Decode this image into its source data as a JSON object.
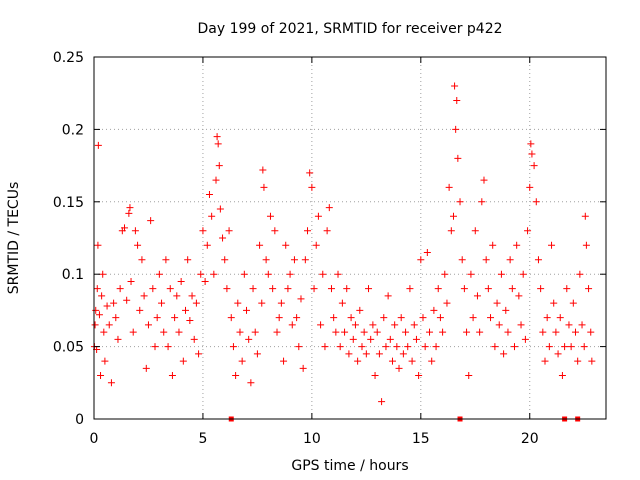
{
  "chart_data": {
    "type": "scatter",
    "title": "Day 199 of 2021, SRMTID for receiver p422",
    "xlabel": "GPS time / hours",
    "ylabel": "SRMTID / TECUs",
    "xlim": [
      0,
      23.5
    ],
    "ylim": [
      0,
      0.25
    ],
    "xticks": [
      0,
      5,
      10,
      15,
      20
    ],
    "xtick_labels": [
      "0",
      "5",
      "10",
      "15",
      "20"
    ],
    "yticks": [
      0,
      0.05,
      0.1,
      0.15,
      0.2,
      0.25
    ],
    "ytick_labels": [
      "0",
      "0.05",
      "0.1",
      "0.15",
      "0.2",
      "0.25"
    ],
    "grid": true,
    "marker": "+",
    "color": "#ff0000",
    "series": [
      {
        "name": "SRMTID",
        "points": [
          [
            0.02,
            0.05
          ],
          [
            0.05,
            0.065
          ],
          [
            0.08,
            0.075
          ],
          [
            0.12,
            0.048
          ],
          [
            0.15,
            0.09
          ],
          [
            0.18,
            0.12
          ],
          [
            0.2,
            0.189
          ],
          [
            0.25,
            0.072
          ],
          [
            0.3,
            0.03
          ],
          [
            0.35,
            0.085
          ],
          [
            0.4,
            0.1
          ],
          [
            0.45,
            0.06
          ],
          [
            0.5,
            0.04
          ],
          [
            0.6,
            0.078
          ],
          [
            0.7,
            0.065
          ],
          [
            0.8,
            0.025
          ],
          [
            0.9,
            0.08
          ],
          [
            1.0,
            0.07
          ],
          [
            1.1,
            0.055
          ],
          [
            1.2,
            0.09
          ],
          [
            1.3,
            0.13
          ],
          [
            1.4,
            0.132
          ],
          [
            1.5,
            0.082
          ],
          [
            1.6,
            0.142
          ],
          [
            1.65,
            0.146
          ],
          [
            1.7,
            0.095
          ],
          [
            1.8,
            0.06
          ],
          [
            1.9,
            0.13
          ],
          [
            2.0,
            0.12
          ],
          [
            2.1,
            0.075
          ],
          [
            2.2,
            0.11
          ],
          [
            2.3,
            0.085
          ],
          [
            2.4,
            0.035
          ],
          [
            2.5,
            0.065
          ],
          [
            2.6,
            0.137
          ],
          [
            2.7,
            0.09
          ],
          [
            2.8,
            0.05
          ],
          [
            2.9,
            0.07
          ],
          [
            3.0,
            0.1
          ],
          [
            3.1,
            0.08
          ],
          [
            3.2,
            0.06
          ],
          [
            3.3,
            0.11
          ],
          [
            3.4,
            0.05
          ],
          [
            3.5,
            0.09
          ],
          [
            3.6,
            0.03
          ],
          [
            3.7,
            0.07
          ],
          [
            3.8,
            0.085
          ],
          [
            3.9,
            0.06
          ],
          [
            4.0,
            0.095
          ],
          [
            4.1,
            0.04
          ],
          [
            4.2,
            0.075
          ],
          [
            4.3,
            0.11
          ],
          [
            4.4,
            0.068
          ],
          [
            4.5,
            0.085
          ],
          [
            4.6,
            0.055
          ],
          [
            4.7,
            0.08
          ],
          [
            4.8,
            0.045
          ],
          [
            4.9,
            0.1
          ],
          [
            5.0,
            0.13
          ],
          [
            5.1,
            0.095
          ],
          [
            5.2,
            0.12
          ],
          [
            5.3,
            0.155
          ],
          [
            5.4,
            0.14
          ],
          [
            5.5,
            0.1
          ],
          [
            5.6,
            0.165
          ],
          [
            5.65,
            0.195
          ],
          [
            5.7,
            0.19
          ],
          [
            5.75,
            0.175
          ],
          [
            5.8,
            0.145
          ],
          [
            5.9,
            0.125
          ],
          [
            6.0,
            0.11
          ],
          [
            6.1,
            0.09
          ],
          [
            6.2,
            0.13
          ],
          [
            6.3,
            0.07
          ],
          [
            6.4,
            0.05
          ],
          [
            6.5,
            0.03
          ],
          [
            6.6,
            0.08
          ],
          [
            6.7,
            0.06
          ],
          [
            6.8,
            0.04
          ],
          [
            6.9,
            0.1
          ],
          [
            7.0,
            0.075
          ],
          [
            7.1,
            0.055
          ],
          [
            7.2,
            0.025
          ],
          [
            7.3,
            0.09
          ],
          [
            7.4,
            0.06
          ],
          [
            7.5,
            0.045
          ],
          [
            7.6,
            0.12
          ],
          [
            7.7,
            0.08
          ],
          [
            7.75,
            0.172
          ],
          [
            7.8,
            0.16
          ],
          [
            7.9,
            0.11
          ],
          [
            8.0,
            0.1
          ],
          [
            8.1,
            0.14
          ],
          [
            8.2,
            0.09
          ],
          [
            8.3,
            0.13
          ],
          [
            8.4,
            0.06
          ],
          [
            8.5,
            0.07
          ],
          [
            8.6,
            0.08
          ],
          [
            8.7,
            0.04
          ],
          [
            8.8,
            0.12
          ],
          [
            8.9,
            0.09
          ],
          [
            9.0,
            0.1
          ],
          [
            9.1,
            0.065
          ],
          [
            9.2,
            0.11
          ],
          [
            9.3,
            0.07
          ],
          [
            9.4,
            0.05
          ],
          [
            9.5,
            0.083
          ],
          [
            9.6,
            0.035
          ],
          [
            9.7,
            0.11
          ],
          [
            9.8,
            0.13
          ],
          [
            9.9,
            0.17
          ],
          [
            10.0,
            0.16
          ],
          [
            10.1,
            0.09
          ],
          [
            10.2,
            0.12
          ],
          [
            10.3,
            0.14
          ],
          [
            10.4,
            0.065
          ],
          [
            10.5,
            0.1
          ],
          [
            10.6,
            0.05
          ],
          [
            10.7,
            0.13
          ],
          [
            10.8,
            0.146
          ],
          [
            10.9,
            0.09
          ],
          [
            11.0,
            0.07
          ],
          [
            11.1,
            0.06
          ],
          [
            11.2,
            0.1
          ],
          [
            11.3,
            0.05
          ],
          [
            11.4,
            0.08
          ],
          [
            11.5,
            0.06
          ],
          [
            11.6,
            0.09
          ],
          [
            11.7,
            0.045
          ],
          [
            11.8,
            0.07
          ],
          [
            11.9,
            0.055
          ],
          [
            12.0,
            0.065
          ],
          [
            12.1,
            0.04
          ],
          [
            12.2,
            0.075
          ],
          [
            12.3,
            0.05
          ],
          [
            12.4,
            0.06
          ],
          [
            12.5,
            0.045
          ],
          [
            12.6,
            0.09
          ],
          [
            12.7,
            0.055
          ],
          [
            12.8,
            0.065
          ],
          [
            12.9,
            0.03
          ],
          [
            13.0,
            0.06
          ],
          [
            13.1,
            0.045
          ],
          [
            13.2,
            0.012
          ],
          [
            13.3,
            0.07
          ],
          [
            13.4,
            0.05
          ],
          [
            13.5,
            0.085
          ],
          [
            13.6,
            0.055
          ],
          [
            13.7,
            0.04
          ],
          [
            13.8,
            0.065
          ],
          [
            13.9,
            0.05
          ],
          [
            14.0,
            0.035
          ],
          [
            14.1,
            0.07
          ],
          [
            14.2,
            0.045
          ],
          [
            14.3,
            0.06
          ],
          [
            14.4,
            0.05
          ],
          [
            14.5,
            0.09
          ],
          [
            14.6,
            0.04
          ],
          [
            14.7,
            0.065
          ],
          [
            14.8,
            0.055
          ],
          [
            14.9,
            0.03
          ],
          [
            15.0,
            0.11
          ],
          [
            15.1,
            0.07
          ],
          [
            15.2,
            0.05
          ],
          [
            15.3,
            0.115
          ],
          [
            15.4,
            0.06
          ],
          [
            15.5,
            0.04
          ],
          [
            15.6,
            0.075
          ],
          [
            15.7,
            0.05
          ],
          [
            15.8,
            0.09
          ],
          [
            15.9,
            0.07
          ],
          [
            16.0,
            0.06
          ],
          [
            16.1,
            0.1
          ],
          [
            16.2,
            0.08
          ],
          [
            16.3,
            0.16
          ],
          [
            16.4,
            0.13
          ],
          [
            16.5,
            0.14
          ],
          [
            16.55,
            0.23
          ],
          [
            16.6,
            0.2
          ],
          [
            16.65,
            0.22
          ],
          [
            16.7,
            0.18
          ],
          [
            16.8,
            0.15
          ],
          [
            16.9,
            0.11
          ],
          [
            17.0,
            0.09
          ],
          [
            17.1,
            0.06
          ],
          [
            17.2,
            0.03
          ],
          [
            17.3,
            0.1
          ],
          [
            17.4,
            0.07
          ],
          [
            17.5,
            0.13
          ],
          [
            17.6,
            0.085
          ],
          [
            17.7,
            0.06
          ],
          [
            17.8,
            0.15
          ],
          [
            17.9,
            0.165
          ],
          [
            18.0,
            0.11
          ],
          [
            18.1,
            0.09
          ],
          [
            18.2,
            0.07
          ],
          [
            18.3,
            0.12
          ],
          [
            18.4,
            0.05
          ],
          [
            18.5,
            0.08
          ],
          [
            18.6,
            0.065
          ],
          [
            18.7,
            0.1
          ],
          [
            18.8,
            0.045
          ],
          [
            18.9,
            0.075
          ],
          [
            19.0,
            0.06
          ],
          [
            19.1,
            0.11
          ],
          [
            19.2,
            0.09
          ],
          [
            19.3,
            0.05
          ],
          [
            19.4,
            0.12
          ],
          [
            19.5,
            0.085
          ],
          [
            19.6,
            0.065
          ],
          [
            19.7,
            0.1
          ],
          [
            19.8,
            0.055
          ],
          [
            19.9,
            0.13
          ],
          [
            20.0,
            0.16
          ],
          [
            20.05,
            0.19
          ],
          [
            20.1,
            0.183
          ],
          [
            20.2,
            0.175
          ],
          [
            20.3,
            0.15
          ],
          [
            20.4,
            0.11
          ],
          [
            20.5,
            0.09
          ],
          [
            20.6,
            0.06
          ],
          [
            20.7,
            0.04
          ],
          [
            20.8,
            0.07
          ],
          [
            20.9,
            0.05
          ],
          [
            21.0,
            0.12
          ],
          [
            21.1,
            0.08
          ],
          [
            21.2,
            0.06
          ],
          [
            21.3,
            0.045
          ],
          [
            21.4,
            0.07
          ],
          [
            21.5,
            0.03
          ],
          [
            21.6,
            0.05
          ],
          [
            21.7,
            0.09
          ],
          [
            21.8,
            0.065
          ],
          [
            21.9,
            0.05
          ],
          [
            22.0,
            0.08
          ],
          [
            22.1,
            0.06
          ],
          [
            22.2,
            0.04
          ],
          [
            22.3,
            0.1
          ],
          [
            22.4,
            0.065
          ],
          [
            22.5,
            0.05
          ],
          [
            22.55,
            0.14
          ],
          [
            22.6,
            0.12
          ],
          [
            22.7,
            0.09
          ],
          [
            22.8,
            0.06
          ],
          [
            22.85,
            0.04
          ]
        ],
        "x": [],
        "y": []
      }
    ],
    "gap_markers_x": [
      6.3,
      16.8,
      21.6,
      22.2
    ]
  }
}
